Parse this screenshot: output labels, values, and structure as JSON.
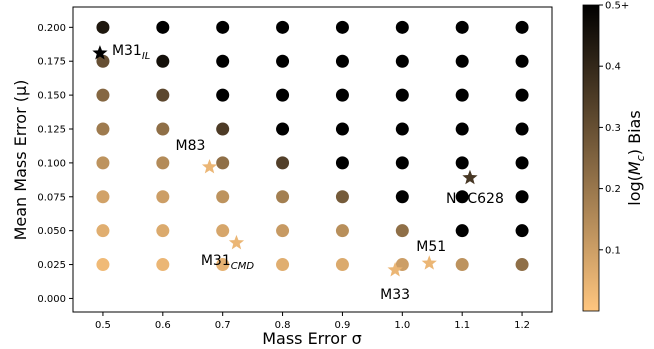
{
  "chart_data": {
    "type": "scatter",
    "xlabel": "Mass Error σ",
    "ylabel": "Mean Mass Error (μ)",
    "xlim": [
      0.45,
      1.25
    ],
    "ylim": [
      -0.01,
      0.215
    ],
    "x_ticks": [
      "0.5",
      "0.6",
      "0.7",
      "0.8",
      "0.9",
      "1.0",
      "1.1",
      "1.2"
    ],
    "y_ticks": [
      "0.000",
      "0.025",
      "0.050",
      "0.075",
      "0.100",
      "0.125",
      "0.150",
      "0.175",
      "0.200"
    ],
    "grid": false,
    "colormap": {
      "name": "copper_r",
      "label": "log(Mc) Bias",
      "label_main": "log(",
      "label_M": "M",
      "label_sub": "c",
      "label_end": ") Bias",
      "min": 0.0,
      "max": 0.5,
      "ticks": [
        "0.1",
        "0.2",
        "0.3",
        "0.4",
        "0.5+"
      ],
      "low_color": "#ffc67f",
      "high_color": "#000000"
    },
    "grid_points": {
      "x": [
        0.5,
        0.6,
        0.7,
        0.8,
        0.9,
        1.0,
        1.1,
        1.2
      ],
      "y": [
        0.025,
        0.05,
        0.075,
        0.1,
        0.125,
        0.15,
        0.175,
        0.2
      ],
      "bias": [
        [
          0.03,
          0.04,
          0.05,
          0.06,
          0.07,
          0.1,
          0.13,
          0.22
        ],
        [
          0.06,
          0.07,
          0.08,
          0.11,
          0.14,
          0.22,
          0.5,
          0.5
        ],
        [
          0.09,
          0.1,
          0.13,
          0.18,
          0.27,
          0.5,
          0.5,
          0.5
        ],
        [
          0.13,
          0.15,
          0.22,
          0.34,
          0.5,
          0.5,
          0.5,
          0.5
        ],
        [
          0.19,
          0.22,
          0.35,
          0.5,
          0.5,
          0.5,
          0.5,
          0.5
        ],
        [
          0.24,
          0.32,
          0.5,
          0.5,
          0.5,
          0.5,
          0.5,
          0.5
        ],
        [
          0.3,
          0.46,
          0.5,
          0.5,
          0.5,
          0.5,
          0.5,
          0.5
        ],
        [
          0.44,
          0.5,
          0.5,
          0.5,
          0.5,
          0.5,
          0.5,
          0.5
        ]
      ]
    },
    "galaxies": [
      {
        "name": "M31",
        "sub": "IL",
        "x": 0.495,
        "y": 0.181,
        "bias": 0.5
      },
      {
        "name": "M83",
        "sub": "",
        "x": 0.678,
        "y": 0.097,
        "bias": 0.04
      },
      {
        "name": "NGC628",
        "sub": "",
        "x": 1.113,
        "y": 0.089,
        "bias": 0.36
      },
      {
        "name": "M31",
        "sub": "CMD",
        "x": 0.723,
        "y": 0.041,
        "bias": 0.04
      },
      {
        "name": "M51",
        "sub": "",
        "x": 1.045,
        "y": 0.026,
        "bias": 0.04
      },
      {
        "name": "M33",
        "sub": "",
        "x": 0.988,
        "y": 0.021,
        "bias": 0.04
      }
    ]
  }
}
